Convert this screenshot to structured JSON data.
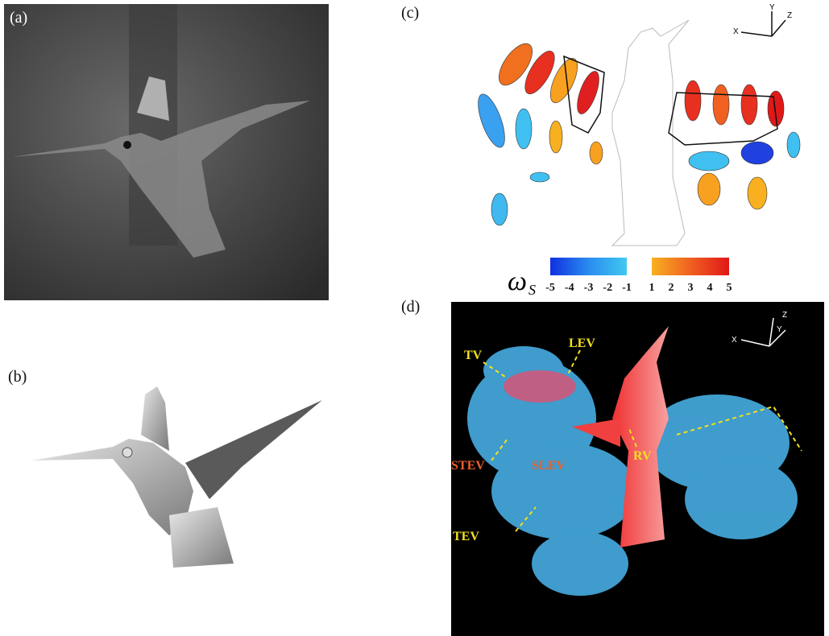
{
  "panels": [
    {
      "label": "(a)"
    },
    {
      "label": "(b)"
    },
    {
      "label": "(c)",
      "axes": [
        "X",
        "Y",
        "Z"
      ]
    },
    {
      "label": "(d)",
      "axes": [
        "X",
        "Y",
        "Z"
      ],
      "annotations": [
        "TV",
        "LEV",
        "STEV",
        "SLEV",
        "RV",
        "TEV"
      ]
    }
  ],
  "colorbar": {
    "symbol": "ω",
    "subscript": "S",
    "ticks": [
      -5,
      -4,
      -3,
      -2,
      -1,
      1,
      2,
      3,
      4,
      5
    ]
  }
}
